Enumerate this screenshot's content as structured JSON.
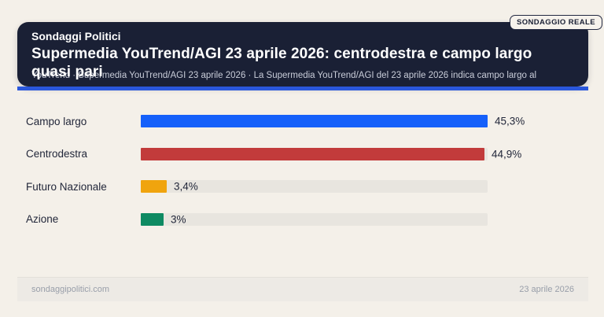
{
  "page": {
    "background": "#f4f0e9"
  },
  "header": {
    "kicker": "Sondaggi Politici",
    "title": "Supermedia YouTrend/AGI 23 aprile 2026: centrodestra e campo largo quasi pari",
    "subtitle": "YouTrend · Supermedia YouTrend/AGI 23 aprile 2026 · La Supermedia YouTrend/AGI del 23 aprile 2026 indica campo largo al",
    "badge_label": "SONDAGGIO REALE",
    "card_color": "#1a2035",
    "accent_color": "#2a57dc"
  },
  "chart_data": {
    "type": "bar",
    "orientation": "horizontal",
    "title": "Supermedia YouTrend/AGI 23 aprile 2026: centrodestra e campo largo quasi pari",
    "categories": [
      "Campo largo",
      "Centrodestra",
      "Futuro Nazionale",
      "Azione"
    ],
    "values": [
      45.3,
      44.9,
      3.4,
      3.0
    ],
    "value_labels": [
      "45,3%",
      "44,9%",
      "3,4%",
      "3%"
    ],
    "bar_colors": [
      "#1560fa",
      "#c23b3b",
      "#f0a40e",
      "#0e8a62"
    ],
    "track_color": "#e8e5df",
    "max_value": 45.3,
    "xlim": [
      0,
      45.3
    ],
    "grid": false,
    "legend": false
  },
  "footer": {
    "left": "sondaggipolitici.com",
    "right": "23 aprile 2026"
  }
}
